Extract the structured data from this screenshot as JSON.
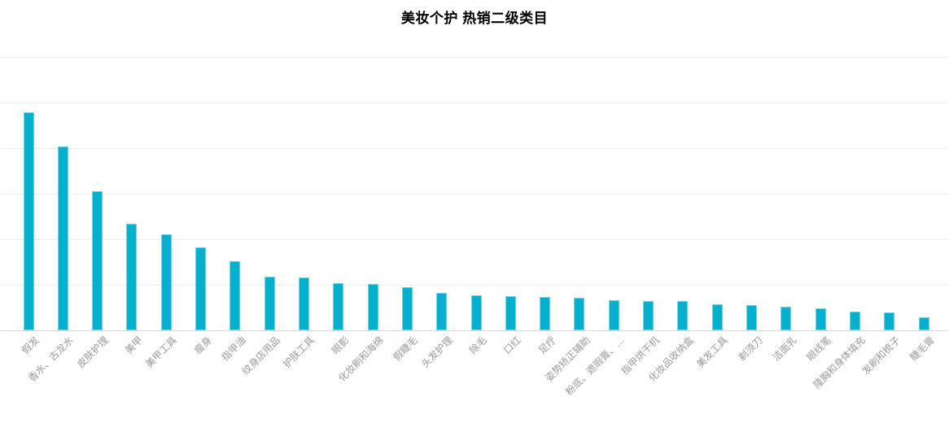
{
  "title": "美妆个护 热销二级类目",
  "chart_data": {
    "type": "bar",
    "title": "美妆个护 热销二级类目",
    "xlabel": "",
    "ylabel": "",
    "categories": [
      "假发",
      "香水、古龙水",
      "皮肤护理",
      "美甲",
      "美甲工具",
      "瘦身",
      "指甲油",
      "纹身店用品",
      "护肤工具",
      "眼影",
      "化妆刷和海绵",
      "假睫毛",
      "头发护理",
      "除毛",
      "口红",
      "足疗",
      "姿势矫正辅助",
      "粉底、遮瑕膏、…",
      "指甲烘干机",
      "化妆品收纳盒",
      "美发工具",
      "剃须刀",
      "洁面乳",
      "眼线笔",
      "隆胸和身体填充",
      "发刷和梳子",
      "睫毛膏"
    ],
    "values": [
      4.79,
      4.04,
      3.05,
      2.34,
      2.1,
      1.83,
      1.52,
      1.18,
      1.16,
      1.03,
      1.02,
      0.95,
      0.82,
      0.76,
      0.75,
      0.73,
      0.71,
      0.66,
      0.65,
      0.64,
      0.57,
      0.55,
      0.52,
      0.49,
      0.41,
      0.39,
      0.29
    ],
    "ylim": [
      0,
      6
    ],
    "y_gridline_step": 1,
    "y_tick_labels_visible": false,
    "grid": true,
    "legend": false,
    "x_label_rotation_deg": 45,
    "bar_color": "#04b0ce",
    "bar_edge_color": "#7ad2e2",
    "gridline_color": "#ececec",
    "axis_line_color": "#d7d7d7",
    "label_color": "#999999",
    "title_color": "#000000",
    "background_color": "#ffffff"
  }
}
